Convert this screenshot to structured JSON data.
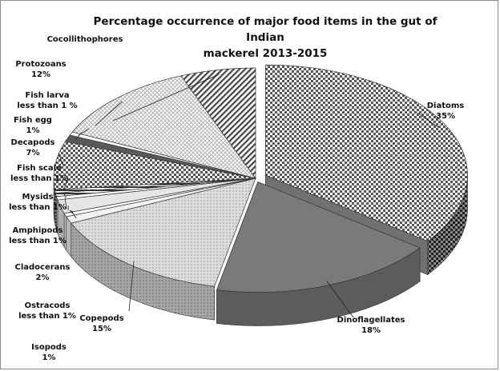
{
  "chart_data": {
    "type": "pie",
    "title_line1": "Percentage occurrence of major food items in the gut of Indian",
    "title_line2": "mackerel 2013-2015",
    "slices": [
      {
        "label_line1": "Diatoms",
        "label_line2": "35%",
        "value": 35,
        "color": "#bdbdbd",
        "pattern": "checker"
      },
      {
        "label_line1": "Dinoflagellates",
        "label_line2": "18%",
        "value": 18,
        "color": "#7a7a7a",
        "pattern": "solid"
      },
      {
        "label_line1": "Copepods",
        "label_line2": "15%",
        "value": 15,
        "color": "#d9d9d9",
        "pattern": "dots"
      },
      {
        "label_line1": "Isopods",
        "label_line2": "1%",
        "value": 1,
        "color": "#f2f2f2",
        "pattern": "solid"
      },
      {
        "label_line1": "Ostracods",
        "label_line2": "less than 1%",
        "value": 0.5,
        "color": "#ffffff",
        "pattern": "solid"
      },
      {
        "label_line1": "Cladocerans",
        "label_line2": "2%",
        "value": 2,
        "color": "#e6e6e6",
        "pattern": "solid"
      },
      {
        "label_line1": "Amphipods",
        "label_line2": "less than 1%",
        "value": 0.5,
        "color": "#ffffff",
        "pattern": "solid"
      },
      {
        "label_line1": "Mysids",
        "label_line2": "less than 1%",
        "value": 0.5,
        "color": "#cfcfcf",
        "pattern": "hlines"
      },
      {
        "label_line1": "Fish scale",
        "label_line2": "less than 1%",
        "value": 0.5,
        "color": "#d0d0d0",
        "pattern": "hlines"
      },
      {
        "label_line1": "Decapods",
        "label_line2": "7%",
        "value": 7,
        "color": "#b0b0b0",
        "pattern": "checker"
      },
      {
        "label_line1": "Fish egg",
        "label_line2": "1%",
        "value": 1,
        "color": "#595959",
        "pattern": "solid"
      },
      {
        "label_line1": "Fish larva",
        "label_line2": "less than 1 %",
        "value": 0.5,
        "color": "#ffffff",
        "pattern": "solid"
      },
      {
        "label_line1": "Protozoans",
        "label_line2": "12%",
        "value": 12,
        "color": "#e6e6e6",
        "pattern": "hatch"
      },
      {
        "label_line1": "Cocollithophores",
        "label_line2": "",
        "value": 6,
        "color": "#e0e0e0",
        "pattern": "diag"
      }
    ]
  }
}
